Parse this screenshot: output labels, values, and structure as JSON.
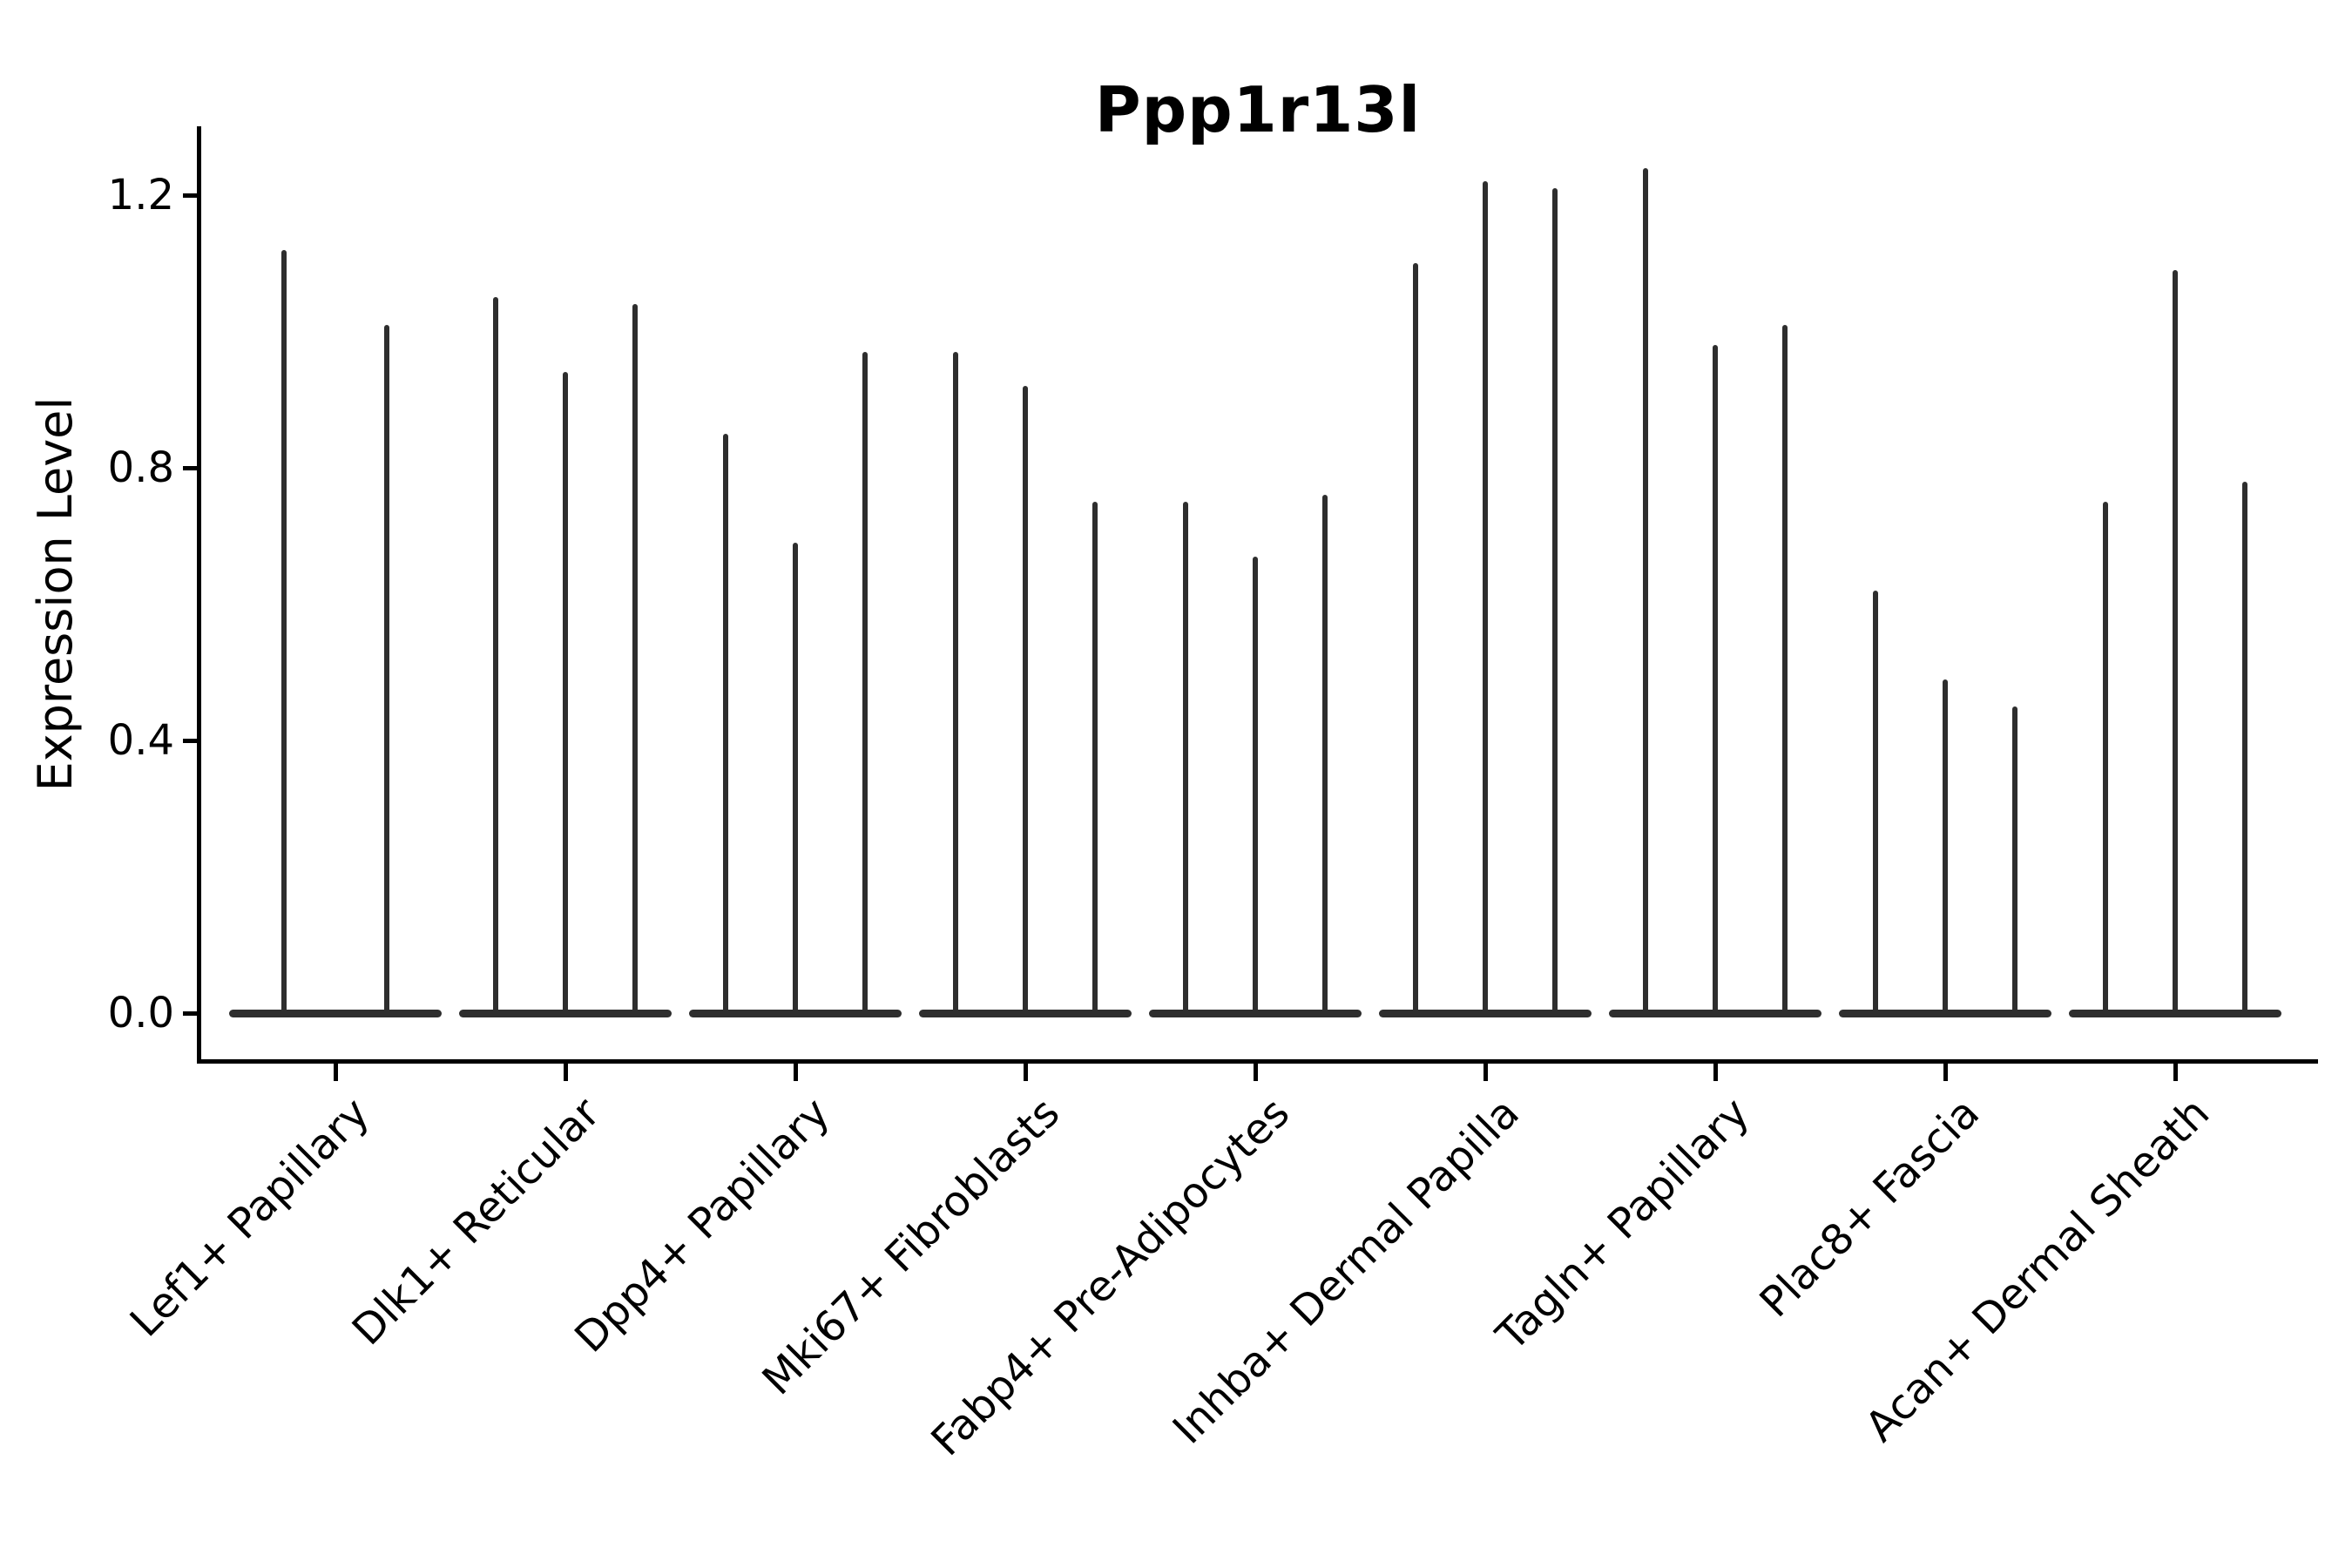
{
  "chart_data": {
    "type": "violin",
    "title": "Ppp1r13l",
    "xlabel": "",
    "ylabel": "Expression Level",
    "categories": [
      "Lef1+ Papillary",
      "Dlk1+ Reticular",
      "Dpp4+ Papillary",
      "Mki67+ Fibroblasts",
      "Fabp4+ Pre-Adipocytes",
      "Inhba+ Dermal Papilla",
      "Tagln+ Papillary",
      "Plac8+ Fascia",
      "Acan+ Dermal Sheath"
    ],
    "violin_peak_expression": [
      [
        1.12,
        1.01
      ],
      [
        1.05,
        0.94,
        1.04
      ],
      [
        0.85,
        0.69,
        0.97
      ],
      [
        0.97,
        0.92,
        0.75
      ],
      [
        0.75,
        0.67,
        0.76
      ],
      [
        1.1,
        1.22,
        1.21
      ],
      [
        1.24,
        0.98,
        1.01
      ],
      [
        0.62,
        0.49,
        0.45
      ],
      [
        0.75,
        1.09,
        0.78
      ]
    ],
    "yticks": [
      0.0,
      0.4,
      0.8,
      1.2
    ],
    "ylim": [
      -0.07,
      1.3
    ],
    "x_tick_rotation": 45,
    "grid": false,
    "legend": null,
    "violin_color": "#2e2e2e",
    "axis_color": "#000000",
    "background_color": "#ffffff"
  }
}
